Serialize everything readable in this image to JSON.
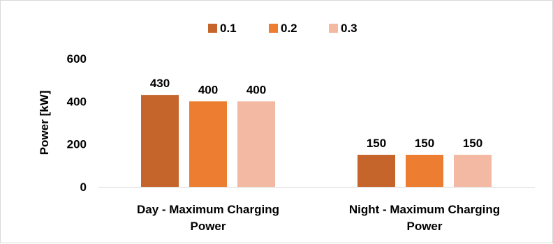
{
  "chart_data": {
    "type": "bar",
    "title": "",
    "xlabel": "",
    "ylabel": "Power [kW]",
    "ylim": [
      0,
      600
    ],
    "yticks": [
      0,
      200,
      400,
      600
    ],
    "categories": [
      [
        "Day - Maximum Charging",
        "Power"
      ],
      [
        "Night - Maximum Charging",
        "Power"
      ]
    ],
    "series": [
      {
        "name": "0.1",
        "values": [
          430,
          150
        ],
        "color": "#c5652b"
      },
      {
        "name": "0.2",
        "values": [
          400,
          150
        ],
        "color": "#ed7d31"
      },
      {
        "name": "0.3",
        "values": [
          400,
          150
        ],
        "color": "#f4b9a3"
      }
    ],
    "legend_position": "top",
    "data_labels": true,
    "grid": false
  }
}
